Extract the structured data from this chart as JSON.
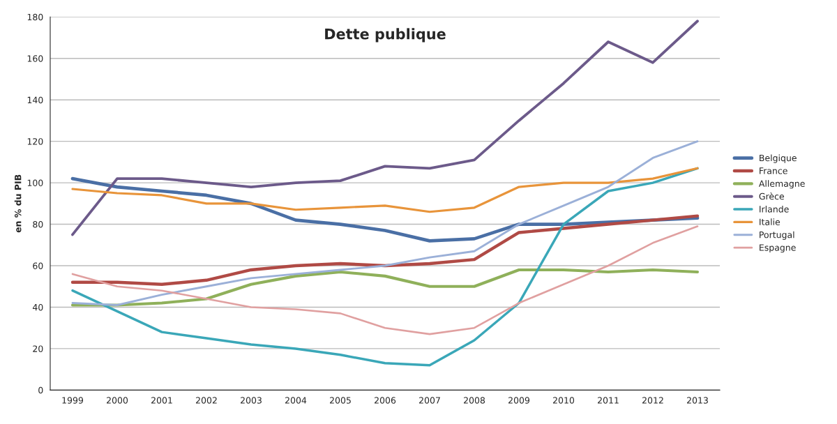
{
  "chart_data": {
    "type": "line",
    "title": "Dette publique",
    "ylabel": "en % du PIB",
    "categories": [
      "1999",
      "2000",
      "2001",
      "2002",
      "2003",
      "2004",
      "2005",
      "2006",
      "2007",
      "2008",
      "2009",
      "2010",
      "2011",
      "2012",
      "2013"
    ],
    "series": [
      {
        "name": "Belgique",
        "color": "#4a6fa5",
        "values": [
          102,
          98,
          96,
          94,
          90,
          82,
          80,
          77,
          72,
          73,
          80,
          80,
          81,
          82,
          83
        ]
      },
      {
        "name": "France",
        "color": "#b04a45",
        "values": [
          52,
          52,
          51,
          53,
          58,
          60,
          61,
          60,
          61,
          63,
          76,
          78,
          80,
          82,
          84
        ]
      },
      {
        "name": "Allemagne",
        "color": "#8fb05a",
        "values": [
          41,
          41,
          42,
          44,
          51,
          55,
          57,
          55,
          50,
          50,
          58,
          58,
          57,
          58,
          57
        ]
      },
      {
        "name": "Grèce",
        "color": "#6c5a8a",
        "values": [
          75,
          102,
          102,
          100,
          98,
          100,
          101,
          108,
          107,
          111,
          130,
          148,
          168,
          158,
          178
        ]
      },
      {
        "name": "Irlande",
        "color": "#3aa7b8",
        "values": [
          48,
          38,
          28,
          25,
          22,
          20,
          17,
          13,
          12,
          24,
          42,
          80,
          96,
          100,
          107
        ]
      },
      {
        "name": "Italie",
        "color": "#e8943a",
        "values": [
          97,
          95,
          94,
          90,
          90,
          87,
          88,
          89,
          86,
          88,
          98,
          100,
          100,
          102,
          107
        ]
      },
      {
        "name": "Portugal",
        "color": "#9bb0d8",
        "values": [
          42,
          41,
          46,
          50,
          54,
          56,
          58,
          60,
          64,
          67,
          80,
          89,
          98,
          112,
          120
        ]
      },
      {
        "name": "Espagne",
        "color": "#e0a0a0",
        "values": [
          56,
          50,
          48,
          44,
          40,
          39,
          37,
          30,
          27,
          30,
          42,
          51,
          60,
          71,
          79
        ]
      }
    ],
    "ylim": [
      0,
      180
    ],
    "yticks": [
      0,
      20,
      40,
      60,
      80,
      100,
      120,
      140,
      160,
      180
    ],
    "grid": "y",
    "legend": "right",
    "marker": "none",
    "line_style": "solid"
  }
}
